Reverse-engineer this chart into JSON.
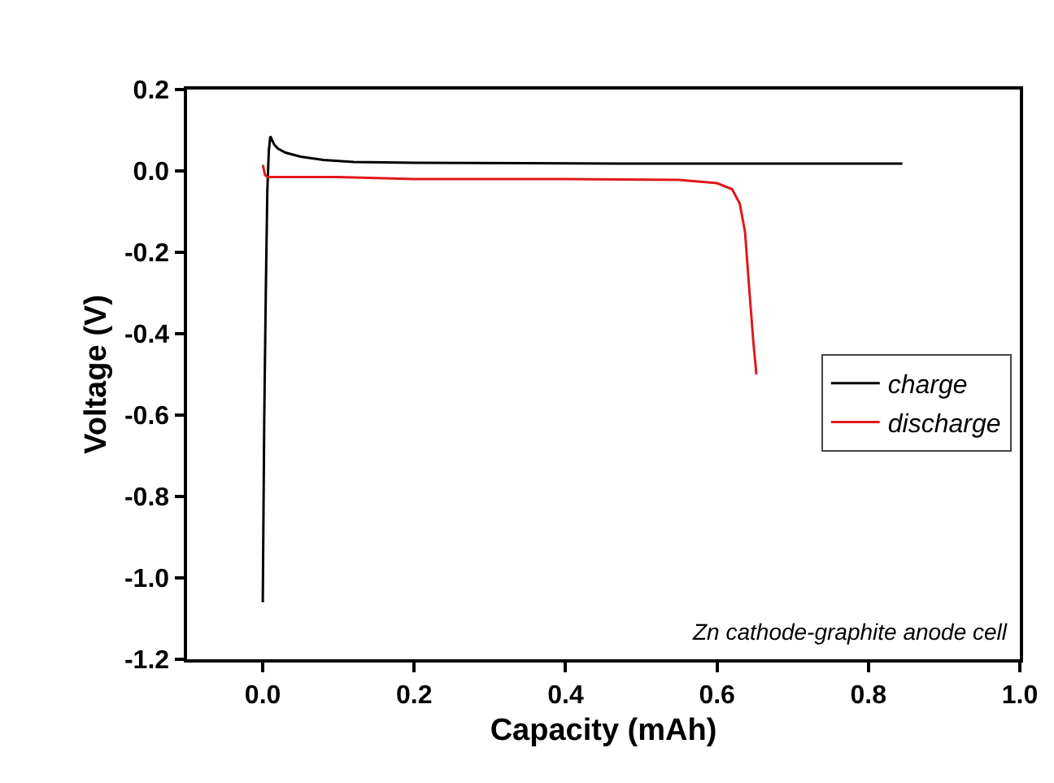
{
  "chart_data": {
    "type": "line",
    "xlabel": "Capacity (mAh)",
    "ylabel": "Voltage (V)",
    "xlim": [
      -0.1,
      1.0
    ],
    "ylim": [
      -1.2,
      0.2
    ],
    "xticks": [
      {
        "value": 0,
        "label": "0.0"
      },
      0.2,
      0.4,
      0.6,
      0.8,
      {
        "value": 1,
        "label": "1.0"
      }
    ],
    "yticks": [
      {
        "value": -1.2,
        "label": "-1.2"
      },
      {
        "value": -1,
        "label": "-1.0"
      },
      {
        "value": -0.8,
        "label": "-0.8"
      },
      {
        "value": -0.6,
        "label": "-0.6"
      },
      {
        "value": -0.4,
        "label": "-0.4"
      },
      {
        "value": -0.2,
        "label": "-0.2"
      },
      {
        "value": 0,
        "label": "0.0"
      },
      0.2
    ],
    "grid": false,
    "legend": "right",
    "marker": "none",
    "line_style": "solid",
    "annotations": [
      "Zn cathode-graphite anode cell"
    ],
    "series": [
      {
        "name": "charge",
        "color": "#000000",
        "x": [
          0,
          0.002,
          0.004,
          0.006,
          0.008,
          0.01,
          0.015,
          0.02,
          0.03,
          0.05,
          0.08,
          0.12,
          0.2,
          0.35,
          0.5,
          0.7,
          0.845
        ],
        "values": [
          -1.06,
          -0.6,
          -0.3,
          -0.05,
          0.05,
          0.085,
          0.065,
          0.055,
          0.045,
          0.035,
          0.027,
          0.022,
          0.02,
          0.019,
          0.018,
          0.018,
          0.018
        ]
      },
      {
        "name": "discharge",
        "color": "#e0191b",
        "x": [
          0,
          0.003,
          0.006,
          0.1,
          0.2,
          0.4,
          0.55,
          0.6,
          0.62,
          0.63,
          0.637,
          0.643,
          0.648,
          0.652
        ],
        "values": [
          0.015,
          -0.01,
          -0.015,
          -0.015,
          -0.02,
          -0.02,
          -0.022,
          -0.03,
          -0.045,
          -0.08,
          -0.15,
          -0.3,
          -0.42,
          -0.5
        ]
      }
    ]
  }
}
